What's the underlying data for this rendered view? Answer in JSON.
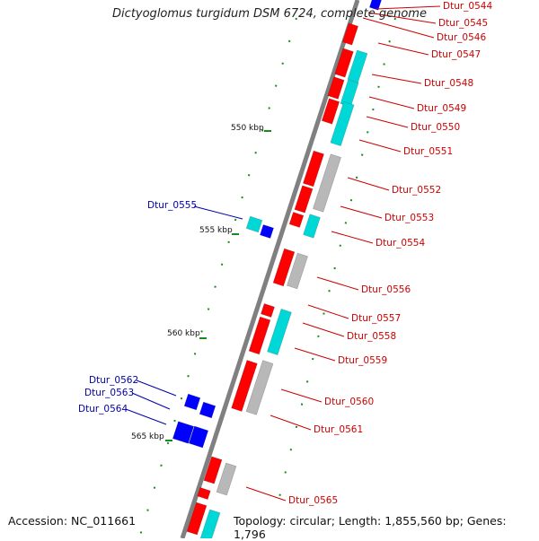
{
  "title": "Dictyoglomus turgidum DSM 6724, complete genome",
  "accession_text": "Accession: NC_011661",
  "summary_text": "Topology: circular; Length: 1,855,560 bp; Genes: 1,796",
  "colors": {
    "backbone": "#808080",
    "forward_gene": "#ff0000",
    "reverse_gene": "#0000ff",
    "cyan_feature": "#00d8d8",
    "grey_feature": "#b8b8b8",
    "ticks": "#1a8a1a",
    "label_forward": "#cc0000",
    "label_reverse": "#0000aa"
  },
  "scale_labels": [
    "550 kbp",
    "555 kbp",
    "560 kbp",
    "565 kbp"
  ],
  "gene_labels_right": [
    "Dtur_0544",
    "Dtur_0545",
    "Dtur_0546",
    "Dtur_0547",
    "Dtur_0548",
    "Dtur_0549",
    "Dtur_0550",
    "Dtur_0551",
    "Dtur_0552",
    "Dtur_0553",
    "Dtur_0554",
    "Dtur_0556",
    "Dtur_0557",
    "Dtur_0558",
    "Dtur_0559",
    "Dtur_0560",
    "Dtur_0561",
    "Dtur_0565"
  ],
  "gene_labels_left": [
    "Dtur_0555",
    "Dtur_0562",
    "Dtur_0563",
    "Dtur_0564"
  ]
}
